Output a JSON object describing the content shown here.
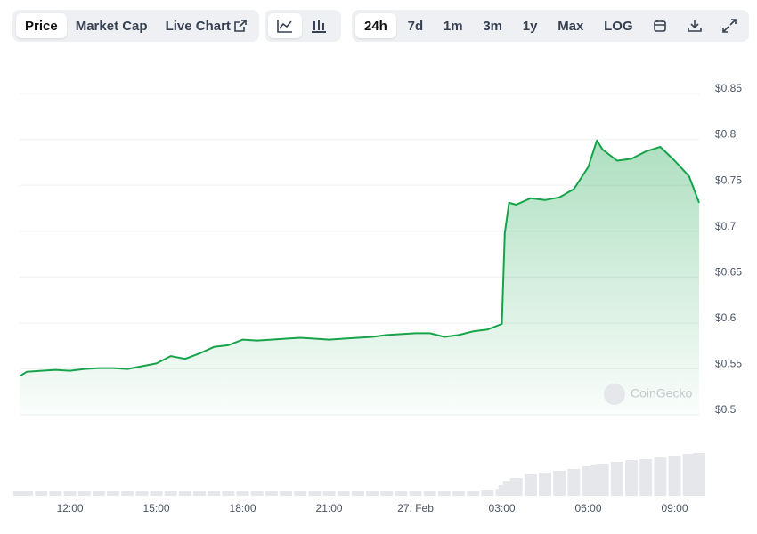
{
  "toolbar": {
    "tabs": [
      "Price",
      "Market Cap",
      "Live Chart"
    ],
    "ranges": [
      "24h",
      "7d",
      "1m",
      "3m",
      "1y",
      "Max",
      "LOG"
    ]
  },
  "watermark": "CoinGecko",
  "chart_data": {
    "type": "area",
    "x": [
      10.25,
      10.5,
      11,
      11.5,
      12,
      12.5,
      13,
      13.5,
      14,
      14.5,
      15,
      15.5,
      16,
      16.5,
      17,
      17.5,
      18,
      18.5,
      19,
      19.5,
      20,
      20.5,
      21,
      21.5,
      22,
      22.5,
      23,
      23.5,
      24,
      24.5,
      25,
      25.5,
      26,
      26.5,
      27,
      27.1,
      27.25,
      27.5,
      28,
      28.5,
      29,
      29.5,
      30,
      30.3,
      30.5,
      31,
      31.5,
      32,
      32.5,
      33,
      33.5,
      33.85
    ],
    "series": [
      {
        "color": "#16a34a",
        "values": [
          0.537,
          0.542,
          0.543,
          0.544,
          0.543,
          0.545,
          0.546,
          0.546,
          0.545,
          0.548,
          0.551,
          0.559,
          0.556,
          0.562,
          0.569,
          0.571,
          0.577,
          0.576,
          0.577,
          0.578,
          0.579,
          0.578,
          0.577,
          0.578,
          0.579,
          0.58,
          0.582,
          0.583,
          0.584,
          0.584,
          0.58,
          0.582,
          0.586,
          0.588,
          0.594,
          0.693,
          0.726,
          0.724,
          0.731,
          0.729,
          0.732,
          0.741,
          0.765,
          0.794,
          0.784,
          0.772,
          0.774,
          0.782,
          0.787,
          0.772,
          0.755,
          0.726
        ]
      }
    ],
    "volume": {
      "color": "#e5e7eb",
      "values": [
        5,
        5,
        5,
        5,
        5,
        5,
        5,
        5,
        5,
        5,
        5,
        5,
        5,
        5,
        5,
        5,
        5,
        5,
        5,
        5,
        5,
        5,
        5,
        5,
        5,
        5,
        5,
        5,
        5,
        5,
        5,
        5,
        5,
        6,
        8,
        12,
        16,
        20,
        24,
        26,
        28,
        30,
        33,
        35,
        36,
        38,
        40,
        41,
        43,
        45,
        47,
        48
      ]
    },
    "xlim": [
      10.25,
      33.85
    ],
    "xticks": [
      {
        "value": 12,
        "label": "12:00"
      },
      {
        "value": 15,
        "label": "15:00"
      },
      {
        "value": 18,
        "label": "18:00"
      },
      {
        "value": 21,
        "label": "21:00"
      },
      {
        "value": 24,
        "label": "27. Feb"
      },
      {
        "value": 27,
        "label": "03:00"
      },
      {
        "value": 30,
        "label": "06:00"
      },
      {
        "value": 33,
        "label": "09:00"
      }
    ],
    "ylim": [
      0.5,
      0.85
    ],
    "yticks": [
      {
        "value": 0.5,
        "label": "$0.5"
      },
      {
        "value": 0.55,
        "label": "$0.55"
      },
      {
        "value": 0.6,
        "label": "$0.6"
      },
      {
        "value": 0.65,
        "label": "$0.65"
      },
      {
        "value": 0.7,
        "label": "$0.7"
      },
      {
        "value": 0.75,
        "label": "$0.75"
      },
      {
        "value": 0.8,
        "label": "$0.8"
      },
      {
        "value": 0.85,
        "label": "$0.85"
      }
    ],
    "grid": true
  }
}
